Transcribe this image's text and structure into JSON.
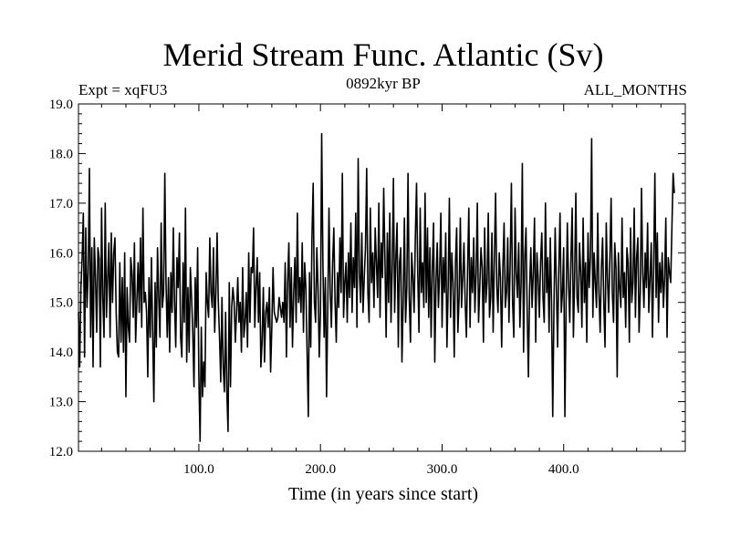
{
  "chart_data": {
    "type": "line",
    "title": "Merid Stream Func. Atlantic (Sv)",
    "subtitle_left": "Expt = xqFU3",
    "subtitle_center": "0892kyr BP",
    "subtitle_right": "ALL_MONTHS",
    "xlabel": "Time (in years since start)",
    "ylabel": "",
    "xlim": [
      1,
      500
    ],
    "ylim": [
      12.0,
      19.0
    ],
    "xticks": [
      100,
      200,
      300,
      400
    ],
    "xtick_labels": [
      "100.0",
      "200.0",
      "300.0",
      "400.0"
    ],
    "yticks": [
      12,
      13,
      14,
      15,
      16,
      17,
      18,
      19
    ],
    "ytick_labels": [
      "12.0",
      "13.0",
      "14.0",
      "15.0",
      "16.0",
      "17.0",
      "18.0",
      "19.0"
    ],
    "series": [
      {
        "name": "Merid Stream Func. Atlantic",
        "x_start": 1,
        "x_step": 1,
        "values": [
          14.8,
          13.7,
          15.3,
          15.9,
          16.8,
          13.9,
          16.5,
          14.9,
          15.6,
          17.7,
          14.3,
          16.1,
          13.7,
          16.3,
          15.5,
          14.4,
          16.1,
          15.9,
          13.7,
          16.9,
          15.1,
          14.3,
          17.0,
          14.7,
          15.5,
          16.2,
          14.3,
          16.4,
          15.0,
          16.0,
          16.3,
          14.8,
          14.0,
          13.9,
          15.8,
          14.2,
          15.5,
          14.0,
          16.0,
          13.1,
          15.3,
          14.5,
          14.2,
          15.9,
          15.6,
          14.7,
          16.2,
          14.2,
          15.0,
          15.8,
          14.8,
          16.3,
          14.5,
          16.9,
          15.0,
          15.2,
          14.8,
          13.5,
          15.5,
          14.3,
          15.9,
          14.4,
          13.0,
          15.4,
          14.1,
          16.1,
          15.1,
          14.3,
          16.6,
          14.9,
          15.2,
          17.6,
          15.4,
          14.3,
          15.5,
          14.0,
          15.6,
          14.8,
          16.5,
          15.0,
          14.1,
          15.9,
          15.3,
          16.4,
          14.3,
          13.9,
          15.8,
          14.6,
          16.9,
          13.8,
          15.3,
          14.0,
          15.7,
          15.1,
          14.4,
          13.3,
          15.5,
          14.5,
          16.1,
          13.5,
          12.2,
          14.5,
          13.1,
          13.8,
          13.3,
          15.6,
          15.0,
          14.7,
          16.3,
          15.2,
          14.9,
          16.1,
          14.4,
          15.2,
          16.4,
          15.0,
          14.3,
          13.4,
          15.1,
          13.7,
          13.2,
          14.8,
          13.2,
          12.4,
          15.4,
          13.3,
          14.9,
          15.3,
          15.0,
          14.2,
          14.8,
          15.5,
          14.6,
          15.0,
          14.0,
          15.7,
          14.3,
          14.6,
          15.2,
          14.1,
          16.0,
          14.6,
          15.7,
          15.6,
          16.5,
          14.5,
          15.3,
          15.9,
          14.6,
          15.6,
          13.7,
          14.2,
          15.3,
          13.8,
          14.8,
          15.0,
          14.5,
          15.3,
          13.6,
          14.5,
          15.7,
          14.8,
          14.7,
          14.6,
          14.7,
          15.1,
          14.9,
          14.7,
          15.0,
          14.6,
          15.8,
          13.9,
          15.4,
          16.2,
          14.5,
          15.7,
          14.1,
          15.2,
          15.9,
          14.6,
          16.8,
          15.0,
          15.5,
          14.8,
          16.2,
          14.4,
          15.8,
          15.3,
          14.0,
          12.7,
          15.6,
          14.1,
          16.3,
          17.4,
          15.0,
          14.6,
          16.1,
          15.3,
          13.9,
          14.8,
          18.4,
          15.8,
          14.3,
          15.5,
          13.1,
          14.9,
          16.9,
          15.2,
          14.5,
          15.8,
          16.5,
          15.0,
          14.2,
          15.6,
          14.9,
          16.3,
          15.2,
          17.6,
          14.7,
          15.4,
          15.8,
          14.6,
          16.0,
          15.1,
          16.6,
          14.8,
          15.9,
          15.3,
          16.8,
          14.5,
          17.9,
          15.6,
          15.0,
          16.4,
          14.8,
          15.5,
          16.1,
          17.7,
          15.2,
          14.6,
          16.9,
          15.4,
          16.0,
          14.9,
          16.5,
          15.8,
          15.1,
          17.0,
          14.7,
          16.2,
          15.5,
          17.3,
          15.9,
          14.3,
          16.4,
          15.0,
          16.8,
          14.6,
          15.7,
          17.5,
          14.8,
          15.9,
          16.6,
          14.1,
          15.8,
          16.1,
          13.8,
          15.0,
          16.7,
          14.6,
          15.3,
          17.6,
          15.1,
          14.2,
          16.0,
          15.5,
          14.8,
          16.3,
          17.4,
          15.6,
          14.4,
          16.9,
          15.2,
          15.8,
          14.9,
          17.2,
          15.0,
          16.5,
          14.7,
          16.1,
          14.3,
          15.7,
          16.6,
          13.8,
          15.4,
          16.2,
          14.9,
          15.6,
          16.8,
          14.5,
          15.9,
          15.2,
          16.4,
          14.1,
          15.3,
          17.1,
          14.7,
          16.0,
          15.4,
          13.9,
          15.8,
          16.5,
          14.4,
          15.1,
          16.7,
          14.9,
          15.5,
          16.2,
          15.0,
          14.3,
          15.7,
          16.9,
          14.5,
          15.9,
          15.2,
          16.3,
          14.8,
          15.6,
          17.0,
          14.6,
          15.3,
          16.1,
          15.7,
          14.2,
          16.5,
          15.0,
          15.4,
          16.8,
          14.7,
          15.1,
          16.4,
          14.4,
          15.9,
          17.2,
          15.3,
          14.8,
          16.0,
          15.5,
          14.1,
          15.7,
          16.6,
          14.9,
          15.2,
          16.3,
          14.6,
          15.8,
          17.4,
          15.0,
          14.3,
          16.9,
          15.6,
          15.1,
          16.2,
          14.5,
          15.4,
          17.8,
          14.0,
          15.9,
          16.5,
          14.8,
          13.5,
          15.3,
          16.1,
          14.9,
          15.6,
          16.7,
          14.2,
          16.0,
          15.5,
          14.7,
          15.8,
          16.4,
          15.1,
          14.6,
          17.0,
          15.2,
          15.9,
          14.4,
          16.3,
          15.0,
          12.7,
          14.9,
          16.5,
          15.3,
          14.1,
          15.7,
          16.8,
          14.8,
          15.2,
          16.1,
          12.7,
          15.0,
          16.6,
          15.4,
          14.6,
          15.9,
          16.9,
          14.3,
          15.5,
          17.2,
          15.1,
          14.8,
          16.2,
          15.6,
          14.5,
          16.7,
          15.0,
          15.8,
          14.2,
          16.4,
          15.3,
          15.9,
          18.3,
          14.7,
          16.0,
          15.4,
          14.9,
          16.8,
          15.2,
          14.4,
          15.7,
          16.3,
          15.0,
          14.1,
          16.6,
          15.5,
          14.8,
          15.9,
          17.1,
          15.2,
          14.6,
          16.2,
          15.7,
          13.5,
          16.0,
          15.3,
          14.9,
          16.7,
          15.1,
          15.6,
          14.5,
          16.1,
          15.8,
          14.2,
          16.5,
          15.0,
          15.4,
          16.9,
          14.7,
          15.9,
          16.3,
          14.4,
          15.2,
          17.3,
          15.6,
          14.9,
          16.0,
          15.3,
          16.6,
          14.8,
          15.5,
          16.2,
          14.3,
          15.7,
          17.6,
          15.1,
          16.4,
          14.6,
          15.8,
          15.2,
          16.0,
          14.9,
          15.5,
          16.7,
          14.3,
          15.9,
          15.6,
          15.4,
          16.5,
          17.6,
          17.2
        ]
      }
    ]
  }
}
